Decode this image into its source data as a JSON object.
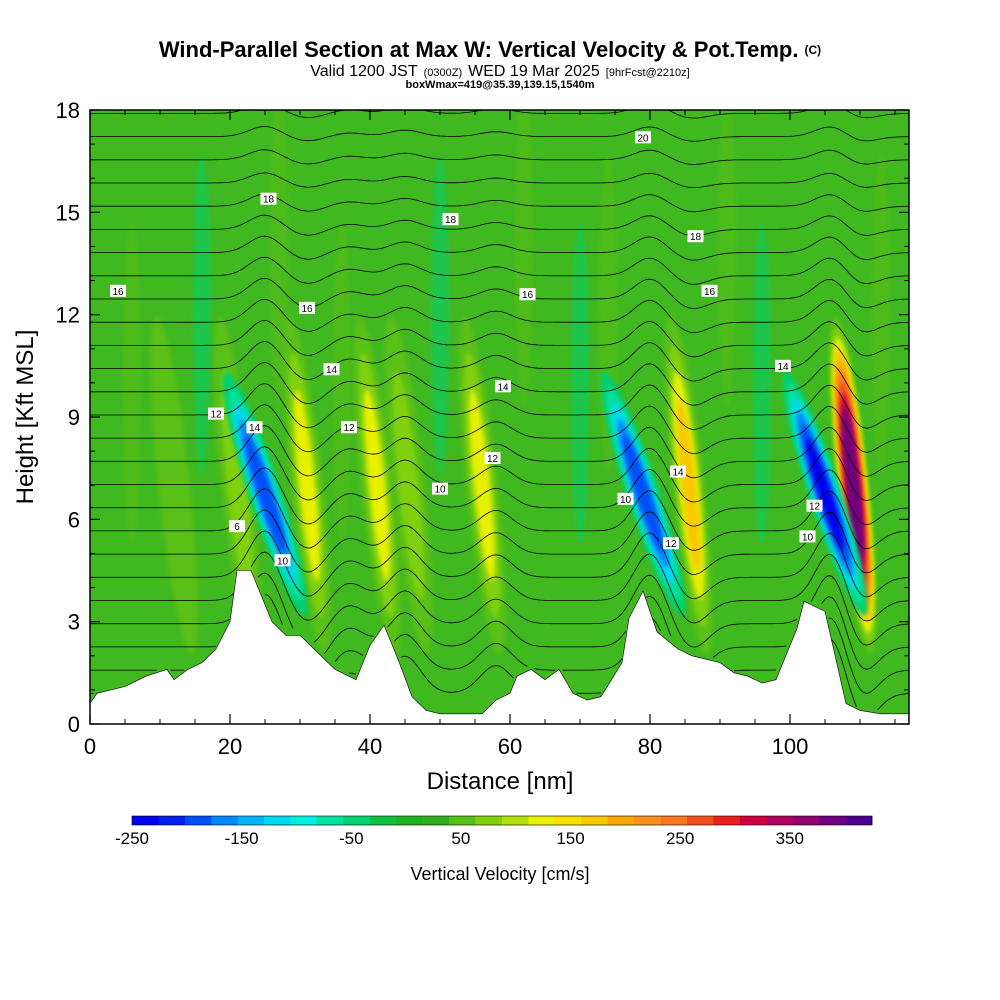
{
  "chart_data": {
    "type": "heatmap",
    "title": "Wind-Parallel Section at Max W: Vertical Velocity & Pot.Temp.",
    "title_mark": "(C)",
    "subtitle_parts": [
      "Valid 1200 JST",
      "(0300Z)",
      "WED 19 Mar 2025",
      "[9hrFcst@2210z]"
    ],
    "subtitle2": "boxWmax=419@35.39,139.15,1540m",
    "xlabel": "Distance [nm]",
    "ylabel": "Height [Kft MSL]",
    "xlim": [
      0,
      117
    ],
    "ylim": [
      0,
      18
    ],
    "x_ticks": [
      "0",
      "20",
      "40",
      "60",
      "80",
      "100"
    ],
    "x_tick_values": [
      0,
      20,
      40,
      60,
      80,
      100
    ],
    "y_ticks": [
      "0",
      "3",
      "6",
      "9",
      "12",
      "15",
      "18"
    ],
    "y_tick_values": [
      0,
      3,
      6,
      9,
      12,
      15,
      18
    ],
    "background_value_cm_s": 0,
    "updrafts": [
      {
        "x": 12,
        "value": 50
      },
      {
        "x": 21,
        "value": 80
      },
      {
        "x": 31,
        "value": 130
      },
      {
        "x": 41,
        "value": 120
      },
      {
        "x": 45.5,
        "value": 90
      },
      {
        "x": 56,
        "value": 130
      },
      {
        "x": 85.5,
        "value": 190
      },
      {
        "x": 109,
        "value": 400
      }
    ],
    "downdrafts": [
      {
        "x": 25,
        "value": -220
      },
      {
        "x": 79,
        "value": -230
      },
      {
        "x": 105,
        "value": -250
      }
    ],
    "terrain": [
      [
        0,
        0.6
      ],
      [
        1,
        0.9
      ],
      [
        5,
        1.1
      ],
      [
        8,
        1.4
      ],
      [
        11,
        1.6
      ],
      [
        12,
        1.3
      ],
      [
        14,
        1.6
      ],
      [
        16,
        1.8
      ],
      [
        18,
        2.2
      ],
      [
        20,
        3
      ],
      [
        21,
        4.5
      ],
      [
        23,
        4.5
      ],
      [
        25,
        3.5
      ],
      [
        26,
        3
      ],
      [
        28,
        2.6
      ],
      [
        30,
        2.6
      ],
      [
        32,
        2.2
      ],
      [
        35,
        1.6
      ],
      [
        38,
        1.3
      ],
      [
        40,
        2.3
      ],
      [
        42,
        2.9
      ],
      [
        44,
        1.9
      ],
      [
        46,
        0.8
      ],
      [
        48,
        0.4
      ],
      [
        50,
        0.3
      ],
      [
        56,
        0.3
      ],
      [
        58,
        0.7
      ],
      [
        60,
        0.9
      ],
      [
        61,
        1.4
      ],
      [
        63,
        1.6
      ],
      [
        65,
        1.3
      ],
      [
        67,
        1.6
      ],
      [
        69,
        0.9
      ],
      [
        71,
        0.7
      ],
      [
        73,
        0.8
      ],
      [
        76,
        1.8
      ],
      [
        77,
        3.1
      ],
      [
        79,
        3.9
      ],
      [
        81,
        2.7
      ],
      [
        84,
        2.2
      ],
      [
        86,
        2
      ],
      [
        88,
        1.9
      ],
      [
        90,
        1.8
      ],
      [
        92,
        1.5
      ],
      [
        94,
        1.4
      ],
      [
        96,
        1.2
      ],
      [
        98,
        1.3
      ],
      [
        101,
        2.8
      ],
      [
        102,
        3.6
      ],
      [
        105,
        3.3
      ],
      [
        106,
        2.4
      ],
      [
        107,
        1.5
      ],
      [
        108,
        0.6
      ],
      [
        110,
        0.4
      ],
      [
        113,
        0.3
      ],
      [
        116,
        0.3
      ]
    ],
    "isentrope_labels": [
      {
        "text": "20",
        "x": 79,
        "y": 17.2
      },
      {
        "text": "18",
        "x": 25.5,
        "y": 15.4
      },
      {
        "text": "18",
        "x": 51.5,
        "y": 14.8
      },
      {
        "text": "18",
        "x": 86.5,
        "y": 14.3
      },
      {
        "text": "16",
        "x": 4,
        "y": 12.7
      },
      {
        "text": "16",
        "x": 31,
        "y": 12.2
      },
      {
        "text": "16",
        "x": 62.5,
        "y": 12.6
      },
      {
        "text": "16",
        "x": 88.5,
        "y": 12.7
      },
      {
        "text": "14",
        "x": 34.5,
        "y": 10.4
      },
      {
        "text": "14",
        "x": 59,
        "y": 9.9
      },
      {
        "text": "14",
        "x": 99,
        "y": 10.5
      },
      {
        "text": "14",
        "x": 23.5,
        "y": 8.7
      },
      {
        "text": "14",
        "x": 84,
        "y": 7.4
      },
      {
        "text": "12",
        "x": 18,
        "y": 9.1
      },
      {
        "text": "12",
        "x": 37,
        "y": 8.7
      },
      {
        "text": "12",
        "x": 57.5,
        "y": 7.8
      },
      {
        "text": "12",
        "x": 103.5,
        "y": 6.4
      },
      {
        "text": "12",
        "x": 83,
        "y": 5.3
      },
      {
        "text": "10",
        "x": 50,
        "y": 6.9
      },
      {
        "text": "10",
        "x": 76.5,
        "y": 6.6
      },
      {
        "text": "10",
        "x": 102.5,
        "y": 5.5
      },
      {
        "text": "10",
        "x": 27.5,
        "y": 4.8
      },
      {
        "text": "6",
        "x": 21,
        "y": 5.8
      }
    ],
    "colorbar": {
      "title": "Vertical Velocity [cm/s]",
      "labels": [
        "-250",
        "-150",
        "-50",
        "50",
        "150",
        "250",
        "350"
      ],
      "label_values": [
        -250,
        -150,
        -50,
        50,
        150,
        250,
        350
      ],
      "range": [
        -250,
        425
      ],
      "colors": [
        "#0000f0",
        "#0020f0",
        "#0050f8",
        "#0088f8",
        "#00b4f8",
        "#00d8f0",
        "#00f0e0",
        "#00e0a0",
        "#00d070",
        "#10c040",
        "#20b020",
        "#30b020",
        "#58c018",
        "#80d010",
        "#b0e010",
        "#e8f000",
        "#f8e000",
        "#f8c800",
        "#f8a800",
        "#f89020",
        "#f87820",
        "#f05020",
        "#e82020",
        "#d00040",
        "#b00060",
        "#900070",
        "#700080",
        "#500090"
      ]
    }
  }
}
